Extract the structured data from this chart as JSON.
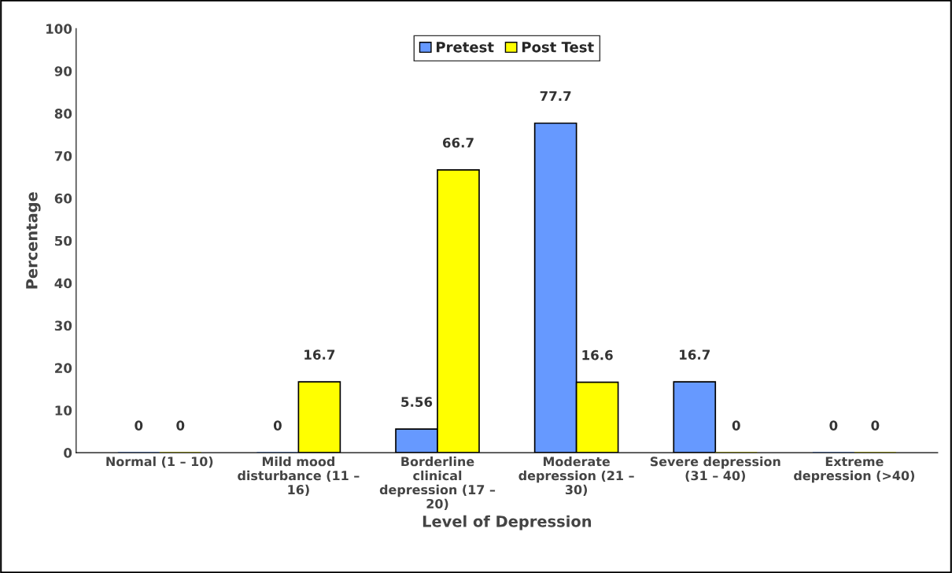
{
  "chart_data": {
    "type": "bar",
    "xlabel": "Level of Depression",
    "ylabel": "Percentage",
    "categories": [
      "Normal (1 – 10)",
      "Mild mood disturbance (11 – 16)",
      "Borderline clinical depression (17 – 20)",
      "Moderate depression (21 – 30)",
      "Severe depression (31 – 40)",
      "Extreme depression (>40)"
    ],
    "series": [
      {
        "name": "Pretest",
        "color": "#6699ff",
        "values": [
          0,
          0,
          5.56,
          77.7,
          16.7,
          0
        ]
      },
      {
        "name": "Post Test",
        "color": "#ffff00",
        "values": [
          0,
          16.7,
          66.7,
          16.6,
          0,
          0
        ]
      }
    ],
    "ylim": [
      0,
      100
    ],
    "yticks": [
      0,
      10,
      20,
      30,
      40,
      50,
      60,
      70,
      80,
      90,
      100
    ],
    "data_labels": true,
    "grid": false,
    "legend": "top"
  }
}
